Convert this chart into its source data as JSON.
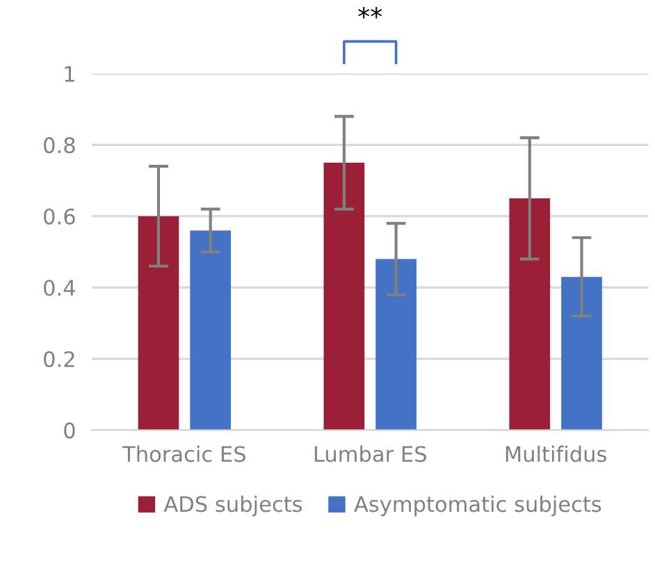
{
  "chart_data": {
    "type": "bar",
    "categories": [
      "Thoracic ES",
      "Lumbar ES",
      "Multifidus"
    ],
    "series": [
      {
        "name": "ADS subjects",
        "color": "#9b1f37",
        "values": [
          0.6,
          0.75,
          0.65
        ],
        "errors": [
          0.14,
          0.13,
          0.17
        ]
      },
      {
        "name": "Asymptomatic subjects",
        "color": "#4472c4",
        "values": [
          0.56,
          0.48,
          0.43
        ],
        "errors": [
          0.06,
          0.1,
          0.11
        ]
      }
    ],
    "ylim": [
      0,
      1
    ],
    "yticks": [
      0,
      0.2,
      0.4,
      0.6,
      0.8,
      1
    ],
    "grid": "y",
    "legend": "bottom",
    "annotations": [
      "**"
    ]
  }
}
